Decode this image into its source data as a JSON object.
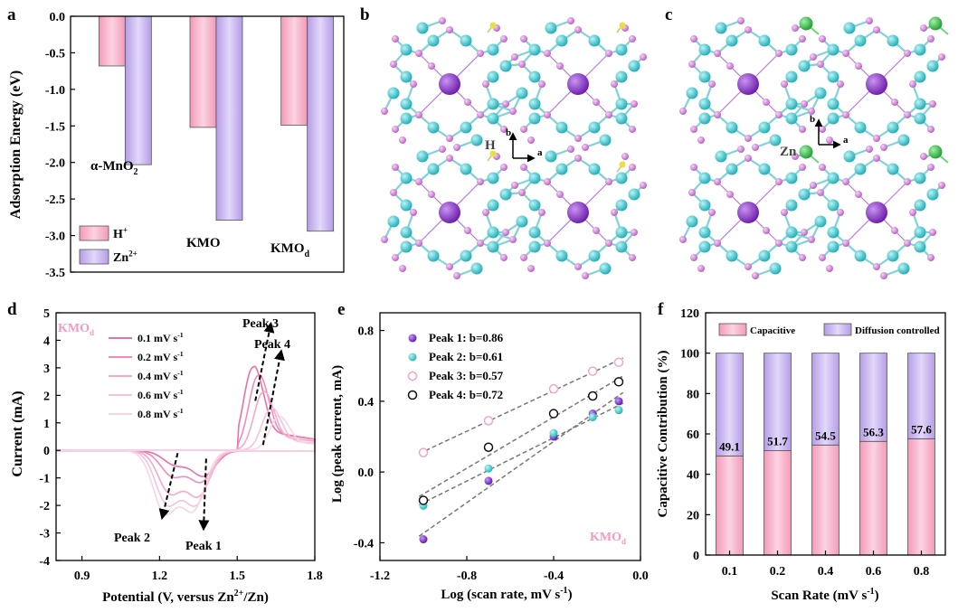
{
  "panel_labels": {
    "a": "a",
    "b": "b",
    "c": "c",
    "d": "d",
    "e": "e",
    "f": "f"
  },
  "colors": {
    "pink_fill": "#f7b8cf",
    "purple_fill": "#c9b7f2",
    "edge": "#555555",
    "mn_atom": "#2fc6cf",
    "o_atom": "#d07ad8",
    "k_atom": "#8a2fc8",
    "h_atom": "#e8e040",
    "zn_atom": "#2ec84a",
    "p1": "#7a26d8",
    "p2": "#3ccfd0",
    "p3": "#f4a4cc",
    "p4": "#111111"
  },
  "structures": {
    "b": {
      "axis_b": "b",
      "axis_a": "a",
      "label": "H"
    },
    "c": {
      "axis_b": "b",
      "axis_a": "a",
      "label": "Zn"
    }
  },
  "chart_data": [
    {
      "id": "a",
      "type": "bar",
      "ylabel": "Adsorption Energy (eV)",
      "ylim": [
        -3.5,
        0.0
      ],
      "yticks": [
        "0.0",
        "-0.5",
        "-1.0",
        "-1.5",
        "-2.0",
        "-2.5",
        "-3.0",
        "-3.5"
      ],
      "categories": [
        "α-MnO2",
        "KMO",
        "KMOd"
      ],
      "category_labels": [
        {
          "main": "α-MnO",
          "sub": "2"
        },
        {
          "main": "KMO",
          "sub": ""
        },
        {
          "main": "KMO",
          "sub": "d"
        }
      ],
      "series": [
        {
          "name": "H+",
          "label_main": "H",
          "label_sup": "+",
          "values": [
            -0.68,
            -1.52,
            -1.49
          ]
        },
        {
          "name": "Zn2+",
          "label_main": "Zn",
          "label_sup": "2+",
          "values": [
            -2.03,
            -2.79,
            -2.94
          ]
        }
      ]
    },
    {
      "id": "d",
      "type": "line",
      "title_main": "KMO",
      "title_sub": "d",
      "xlabel_main": "Potential (V, versus Zn",
      "xlabel_sup": "2+",
      "xlabel_end": "/Zn)",
      "ylabel": "Current (mA)",
      "xlim": [
        0.8,
        1.8
      ],
      "ylim": [
        -4,
        5
      ],
      "xticks": [
        "0.9",
        "1.2",
        "1.5",
        "1.8"
      ],
      "yticks": [
        "-4",
        "-3",
        "-2",
        "-1",
        "0",
        "1",
        "2",
        "3",
        "4",
        "5"
      ],
      "series": [
        {
          "name": "0.1 mV s-1",
          "label_main": "0.1 mV s",
          "label_sup": "-1",
          "anodic_peak": [
            1.56,
            3.0
          ],
          "cathodic_peaks": [
            [
              1.26,
              -0.5
            ],
            [
              1.37,
              -0.9
            ]
          ]
        },
        {
          "name": "0.2 mV s-1",
          "label_main": "0.2 mV s",
          "label_sup": "-1",
          "anodic_peak": [
            1.58,
            2.7
          ],
          "cathodic_peaks": [
            [
              1.25,
              -0.9
            ],
            [
              1.36,
              -1.1
            ]
          ]
        },
        {
          "name": "0.4 mV s-1",
          "label_main": "0.4 mV s",
          "label_sup": "-1",
          "anodic_peak": [
            1.6,
            2.1
          ],
          "cathodic_peaks": [
            [
              1.24,
              -1.5
            ],
            [
              1.35,
              -1.6
            ]
          ]
        },
        {
          "name": "0.6 mV s-1",
          "label_main": "0.6 mV s",
          "label_sup": "-1",
          "anodic_peak": [
            1.63,
            1.5
          ],
          "cathodic_peaks": [
            [
              1.23,
              -1.9
            ],
            [
              1.34,
              -1.9
            ]
          ]
        },
        {
          "name": "0.8 mV s-1",
          "label_main": "0.8 mV s",
          "label_sup": "-1",
          "anodic_peak": [
            1.66,
            1.2
          ],
          "cathodic_peaks": [
            [
              1.22,
              -2.2
            ],
            [
              1.33,
              -2.1
            ]
          ]
        }
      ],
      "annotations": [
        "Peak 1",
        "Peak 2",
        "Peak 3",
        "Peak 4"
      ]
    },
    {
      "id": "e",
      "type": "scatter",
      "title_main": "KMO",
      "title_sub": "d",
      "xlabel_main": "Log (scan rate, mV s",
      "xlabel_sup": "-1",
      "xlabel_end": ")",
      "ylabel": "Log (peak current, mA)",
      "xlim": [
        -1.2,
        0.0
      ],
      "ylim": [
        -0.5,
        0.9
      ],
      "xticks": [
        "-1.2",
        "-0.8",
        "-0.4",
        "0.0"
      ],
      "yticks": [
        "-0.4",
        "0.0",
        "0.4",
        "0.8"
      ],
      "x": [
        -1.0,
        -0.7,
        -0.4,
        -0.22,
        -0.1
      ],
      "series": [
        {
          "name": "Peak 1: b=0.86",
          "y": [
            -0.38,
            -0.05,
            0.2,
            0.33,
            0.4
          ]
        },
        {
          "name": "Peak 2: b=0.61",
          "y": [
            -0.19,
            0.02,
            0.22,
            0.31,
            0.35
          ]
        },
        {
          "name": "Peak 3: b=0.57",
          "y": [
            0.11,
            0.29,
            0.47,
            0.57,
            0.62
          ]
        },
        {
          "name": "Peak 4: b=0.72",
          "y": [
            -0.16,
            0.14,
            0.33,
            0.43,
            0.51
          ]
        }
      ]
    },
    {
      "id": "f",
      "type": "bar",
      "stacked": true,
      "xlabel_main": "Scan Rate (mV s",
      "xlabel_sup": "-1",
      "xlabel_end": ")",
      "ylabel": "Capacitive Contribution (%)",
      "ylim": [
        0,
        120
      ],
      "yticks": [
        "0",
        "20",
        "40",
        "60",
        "80",
        "100",
        "120"
      ],
      "categories": [
        "0.1",
        "0.2",
        "0.4",
        "0.6",
        "0.8"
      ],
      "series": [
        {
          "name": "Capacitive",
          "values": [
            49.1,
            51.7,
            54.5,
            56.3,
            57.6
          ]
        },
        {
          "name": "Diffusion controlled",
          "values": [
            50.9,
            48.3,
            45.5,
            43.7,
            42.4
          ]
        }
      ],
      "data_labels": [
        "49.1",
        "51.7",
        "54.5",
        "56.3",
        "57.6"
      ]
    }
  ]
}
